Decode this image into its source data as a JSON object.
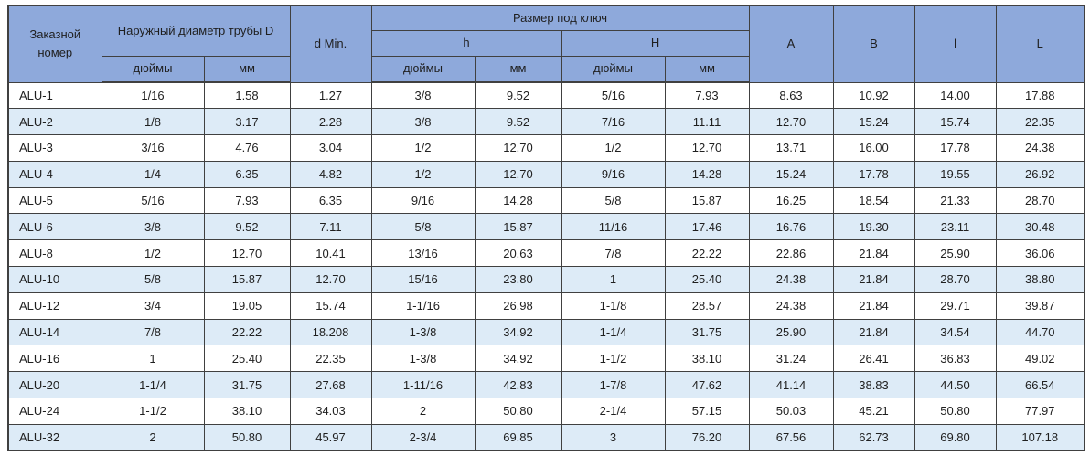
{
  "table": {
    "header": {
      "order_number": "Заказной номер",
      "outer_diameter": "Наружный диаметр трубы D",
      "d_min": "d Min.",
      "wrench_size": "Размер под ключ",
      "h_label": "h",
      "H_label": "H",
      "inches": "дюймы",
      "mm": "мм",
      "a_label": "A",
      "b_label": "B",
      "l_small_label": "l",
      "l_big_label": "L"
    },
    "rows": [
      [
        "ALU-1",
        "1/16",
        "1.58",
        "1.27",
        "3/8",
        "9.52",
        "5/16",
        "7.93",
        "8.63",
        "10.92",
        "14.00",
        "17.88"
      ],
      [
        "ALU-2",
        "1/8",
        "3.17",
        "2.28",
        "3/8",
        "9.52",
        "7/16",
        "11.11",
        "12.70",
        "15.24",
        "15.74",
        "22.35"
      ],
      [
        "ALU-3",
        "3/16",
        "4.76",
        "3.04",
        "1/2",
        "12.70",
        "1/2",
        "12.70",
        "13.71",
        "16.00",
        "17.78",
        "24.38"
      ],
      [
        "ALU-4",
        "1/4",
        "6.35",
        "4.82",
        "1/2",
        "12.70",
        "9/16",
        "14.28",
        "15.24",
        "17.78",
        "19.55",
        "26.92"
      ],
      [
        "ALU-5",
        "5/16",
        "7.93",
        "6.35",
        "9/16",
        "14.28",
        "5/8",
        "15.87",
        "16.25",
        "18.54",
        "21.33",
        "28.70"
      ],
      [
        "ALU-6",
        "3/8",
        "9.52",
        "7.11",
        "5/8",
        "15.87",
        "11/16",
        "17.46",
        "16.76",
        "19.30",
        "23.11",
        "30.48"
      ],
      [
        "ALU-8",
        "1/2",
        "12.70",
        "10.41",
        "13/16",
        "20.63",
        "7/8",
        "22.22",
        "22.86",
        "21.84",
        "25.90",
        "36.06"
      ],
      [
        "ALU-10",
        "5/8",
        "15.87",
        "12.70",
        "15/16",
        "23.80",
        "1",
        "25.40",
        "24.38",
        "21.84",
        "28.70",
        "38.80"
      ],
      [
        "ALU-12",
        "3/4",
        "19.05",
        "15.74",
        "1-1/16",
        "26.98",
        "1-1/8",
        "28.57",
        "24.38",
        "21.84",
        "29.71",
        "39.87"
      ],
      [
        "ALU-14",
        "7/8",
        "22.22",
        "18.208",
        "1-3/8",
        "34.92",
        "1-1/4",
        "31.75",
        "25.90",
        "21.84",
        "34.54",
        "44.70"
      ],
      [
        "ALU-16",
        "1",
        "25.40",
        "22.35",
        "1-3/8",
        "34.92",
        "1-1/2",
        "38.10",
        "31.24",
        "26.41",
        "36.83",
        "49.02"
      ],
      [
        "ALU-20",
        "1-1/4",
        "31.75",
        "27.68",
        "1-11/16",
        "42.83",
        "1-7/8",
        "47.62",
        "41.14",
        "38.83",
        "44.50",
        "66.54"
      ],
      [
        "ALU-24",
        "1-1/2",
        "38.10",
        "34.03",
        "2",
        "50.80",
        "2-1/4",
        "57.15",
        "50.03",
        "45.21",
        "50.80",
        "77.97"
      ],
      [
        "ALU-32",
        "2",
        "50.80",
        "45.97",
        "2-3/4",
        "69.85",
        "3",
        "76.20",
        "67.56",
        "62.73",
        "69.80",
        "107.18"
      ]
    ]
  },
  "colors": {
    "header_fill": "#8EA9DB",
    "row_fill": "#FFFFFF",
    "row_alt_fill": "#DDEBF7",
    "border": "#404040",
    "text": "#1F1F1F"
  }
}
